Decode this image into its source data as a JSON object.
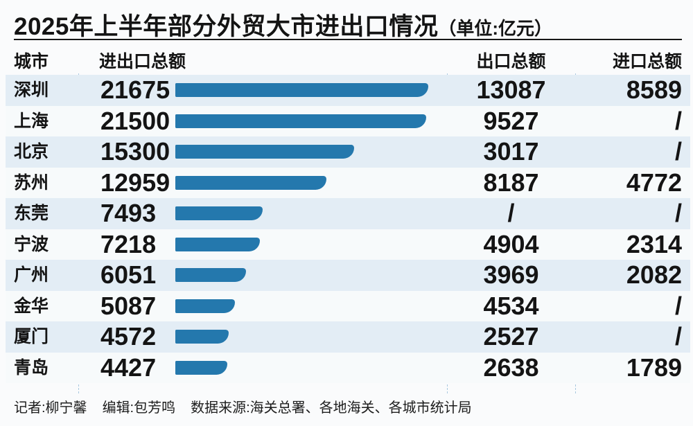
{
  "title": {
    "main": "2025年上半年部分外贸大市进出口情况",
    "unit": "（单位:亿元）"
  },
  "columns": {
    "city": "城市",
    "total": "进出口总额",
    "export": "出口总额",
    "import": "进口总额"
  },
  "rows": [
    {
      "city": "深圳",
      "total": "21675",
      "total_value": 21675,
      "export": "13087",
      "import": "8589"
    },
    {
      "city": "上海",
      "total": "21500",
      "total_value": 21500,
      "export": "9527",
      "import": "/"
    },
    {
      "city": "北京",
      "total": "15300",
      "total_value": 15300,
      "export": "3017",
      "import": "/"
    },
    {
      "city": "苏州",
      "total": "12959",
      "total_value": 12959,
      "export": "8187",
      "import": "4772"
    },
    {
      "city": "东莞",
      "total": "7493",
      "total_value": 7493,
      "export": "/",
      "import": "/"
    },
    {
      "city": "宁波",
      "total": "7218",
      "total_value": 7218,
      "export": "4904",
      "import": "2314"
    },
    {
      "city": "广州",
      "total": "6051",
      "total_value": 6051,
      "export": "3969",
      "import": "2082"
    },
    {
      "city": "金华",
      "total": "5087",
      "total_value": 5087,
      "export": "4534",
      "import": "/"
    },
    {
      "city": "厦门",
      "total": "4572",
      "total_value": 4572,
      "export": "2527",
      "import": "/"
    },
    {
      "city": "青岛",
      "total": "4427",
      "total_value": 4427,
      "export": "2638",
      "import": "1789"
    }
  ],
  "footer": {
    "reporter": "记者:柳宁馨",
    "editor": "编辑:包芳鸣",
    "source": "数据来源:海关总署、各地海关、各城市统计局"
  },
  "colors": {
    "bar": "#2478ad",
    "stripe": "#e3edf5",
    "row_light": "#f7fafb",
    "dash": "#a8c8df",
    "background": "#fafbfc",
    "text": "#141414"
  },
  "chart_data": {
    "type": "bar",
    "orientation": "horizontal",
    "title": "2025年上半年部分外贸大市进出口情况（单位:亿元）",
    "unit": "亿元",
    "categories": [
      "深圳",
      "上海",
      "北京",
      "苏州",
      "东莞",
      "宁波",
      "广州",
      "金华",
      "厦门",
      "青岛"
    ],
    "series": [
      {
        "name": "进出口总额",
        "values": [
          21675,
          21500,
          15300,
          12959,
          7493,
          7218,
          6051,
          5087,
          4572,
          4427
        ]
      },
      {
        "name": "出口总额",
        "values": [
          13087,
          9527,
          3017,
          8187,
          null,
          4904,
          3969,
          4534,
          2527,
          2638
        ]
      },
      {
        "name": "进口总额",
        "values": [
          8589,
          null,
          null,
          4772,
          null,
          2314,
          2082,
          null,
          null,
          1789
        ]
      }
    ],
    "missing_value_marker": "/",
    "xlim": [
      0,
      21675
    ],
    "grid": false,
    "legend_position": "column-headers",
    "bars_drawn_for_series": "进出口总额"
  }
}
